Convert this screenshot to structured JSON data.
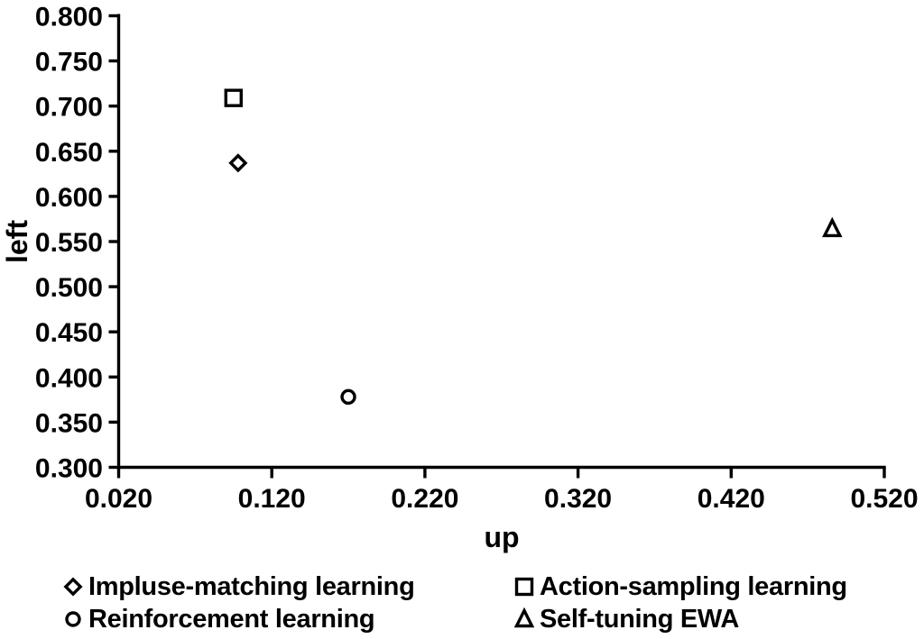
{
  "chart_data": {
    "type": "scatter",
    "title": "",
    "xlabel": "up",
    "ylabel": "left",
    "xlim": [
      0.02,
      0.52
    ],
    "ylim": [
      0.3,
      0.8
    ],
    "xticks": [
      0.02,
      0.12,
      0.22,
      0.32,
      0.42,
      0.52
    ],
    "yticks": [
      0.3,
      0.35,
      0.4,
      0.45,
      0.5,
      0.55,
      0.6,
      0.65,
      0.7,
      0.75,
      0.8
    ],
    "tick_decimals": 3,
    "grid": false,
    "legend_position": "bottom",
    "marker_color": "#000000",
    "background_color": "#ffffff",
    "series": [
      {
        "name": "Impluse-matching learning",
        "marker": "diamond",
        "points": [
          [
            0.098,
            0.637
          ]
        ]
      },
      {
        "name": "Action-sampling learning",
        "marker": "square",
        "points": [
          [
            0.095,
            0.709
          ]
        ]
      },
      {
        "name": "Reinforcement learning",
        "marker": "circle",
        "points": [
          [
            0.17,
            0.378
          ]
        ]
      },
      {
        "name": "Self-tuning EWA",
        "marker": "triangle",
        "points": [
          [
            0.486,
            0.564
          ]
        ]
      }
    ]
  }
}
